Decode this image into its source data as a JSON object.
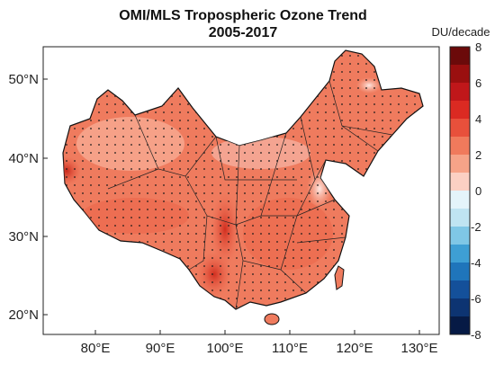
{
  "figure": {
    "title_line1": "OMI/MLS Tropospheric Ozone Trend",
    "title_line2": "2005-2017",
    "x_tick_labels": [
      "80°E",
      "90°E",
      "100°E",
      "110°E",
      "120°E",
      "130°E"
    ],
    "y_tick_labels": [
      "50°N",
      "40°N",
      "30°N",
      "20°N"
    ],
    "colorbar": {
      "unit": "DU/decade",
      "tick_labels": [
        "8",
        "6",
        "4",
        "2",
        "0",
        "-2",
        "-4",
        "-6",
        "-8"
      ]
    }
  },
  "map_data": {
    "region": "China",
    "lon_range": [
      72,
      136
    ],
    "lat_range": [
      17,
      55
    ],
    "lon_ticks": [
      80,
      90,
      100,
      110,
      120,
      130
    ],
    "lat_ticks": [
      50,
      40,
      30,
      20
    ],
    "colorbar_range": [
      -8,
      8
    ],
    "colorbar_step": 1,
    "colors": {
      "dark_red": "#6e0a0a",
      "red": "#d7301f",
      "orange_red": "#ee6a50",
      "salmon": "#f8a48c",
      "light_pink": "#fde0dc",
      "white": "#ffffff",
      "light_blue": "#cfeaf7",
      "blue": "#2a82c6",
      "dark_blue": "#0b1d4a"
    }
  }
}
